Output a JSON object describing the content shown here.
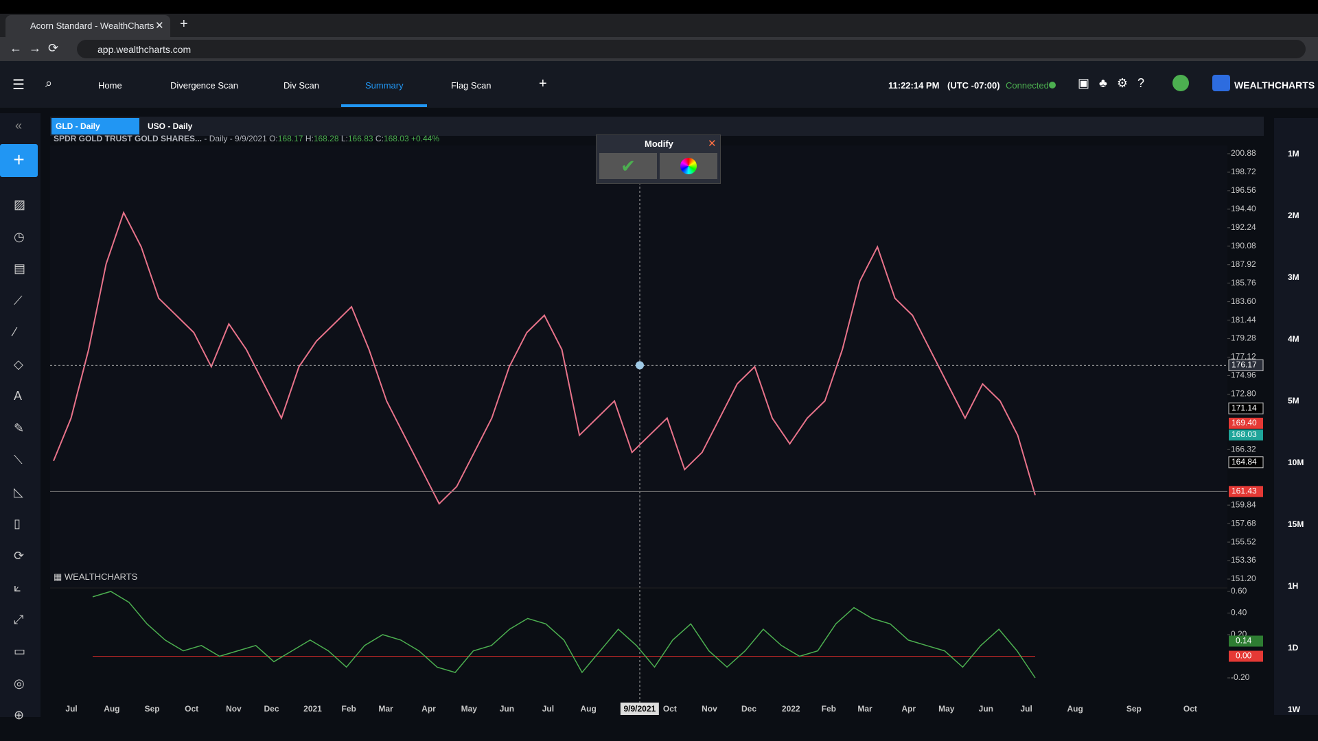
{
  "browser": {
    "tab_title": "Acorn Standard - WealthCharts",
    "url": "app.wealthcharts.com"
  },
  "nav": {
    "items": [
      "Home",
      "Divergence Scan",
      "Div Scan",
      "Summary",
      "Flag Scan"
    ],
    "time": "11:22:14 PM",
    "timezone": "(UTC -07:00)",
    "status": "Connected",
    "brand": "WEALTHCHARTS"
  },
  "chart_tabs": [
    "GLD - Daily",
    "USO - Daily"
  ],
  "legend": {
    "symbol": "SPDR GOLD TRUST GOLD SHARES...",
    "info": "- Daily - 9/9/2021",
    "open_label": "O:",
    "open": "168.17",
    "high_label": "H:",
    "high": "168.28",
    "low_label": "L:",
    "low": "166.83",
    "close_label": "C:",
    "close": "168.03",
    "change": "+0.44%"
  },
  "popup": {
    "title": "Modify"
  },
  "watermark": "WEALTHCHARTS",
  "price": {
    "yticks": [
      200.88,
      198.72,
      196.56,
      {
        "value": 194.4,
        "label": "194.40"
      },
      192.24,
      190.08,
      187.92,
      185.76,
      {
        "value": 183.6,
        "label": "183.60"
      },
      181.44,
      179.28,
      177.12,
      174.96,
      {
        "value": 172.8,
        "label": "172.80"
      },
      166.32,
      159.84,
      157.68,
      155.52,
      153.36,
      {
        "value": 151.2,
        "label": "151.20"
      }
    ],
    "tags": [
      {
        "value": 176.17,
        "color": "#2a2e39"
      },
      {
        "value": 171.14,
        "color": "#000000"
      },
      {
        "value": 169.4,
        "label": "169.40",
        "color": "#e53935"
      },
      {
        "value": 168.03,
        "color": "#1fa59a"
      },
      {
        "value": 164.84,
        "color": "#000000"
      },
      {
        "value": 161.43,
        "color": "#e53935"
      }
    ],
    "closes": [
      165,
      170,
      178,
      188,
      194,
      190,
      184,
      182,
      180,
      176,
      181,
      178,
      174,
      170,
      176,
      179,
      181,
      183,
      178,
      172,
      168,
      164,
      160,
      162,
      166,
      170,
      176,
      180,
      182,
      178,
      168,
      170,
      172,
      166,
      168,
      170,
      164,
      166,
      170,
      174,
      176,
      170,
      167,
      170,
      172,
      178,
      186,
      190,
      184,
      182,
      178,
      174,
      170,
      174,
      172,
      168,
      161
    ],
    "color": "#e8738a"
  },
  "oscillator": {
    "yticks": [
      {
        "value": 0.6,
        "label": "0.60"
      },
      {
        "value": 0.4,
        "label": "0.40"
      },
      {
        "value": 0.2,
        "label": "0.20"
      },
      {
        "value": -0.2,
        "label": "-0.20"
      }
    ],
    "tags": [
      {
        "value": 0.14,
        "color": "#2e7d32"
      },
      {
        "value": 0,
        "label": "0.00",
        "color": "#e53935"
      }
    ],
    "values": [
      0.55,
      0.6,
      0.5,
      0.3,
      0.15,
      0.05,
      0.1,
      0.0,
      0.05,
      0.1,
      -0.05,
      0.05,
      0.15,
      0.05,
      -0.1,
      0.1,
      0.2,
      0.15,
      0.05,
      -0.1,
      -0.15,
      0.05,
      0.1,
      0.25,
      0.35,
      0.3,
      0.15,
      -0.15,
      0.05,
      0.25,
      0.1,
      -0.1,
      0.15,
      0.3,
      0.05,
      -0.1,
      0.05,
      0.25,
      0.1,
      0.0,
      0.05,
      0.3,
      0.45,
      0.35,
      0.3,
      0.15,
      0.1,
      0.05,
      -0.1,
      0.1,
      0.25,
      0.05,
      -0.2
    ],
    "color": "#4caf50"
  },
  "time_axis": [
    "Jul",
    "Aug",
    "Sep",
    "Oct",
    "Nov",
    "Dec",
    "2021",
    "Feb",
    "Mar",
    "Apr",
    "May",
    "Jun",
    "Jul",
    "Aug",
    "9/9/2021",
    "Oct",
    "Nov",
    "Dec",
    "2022",
    "Feb",
    "Mar",
    "Apr",
    "May",
    "Jun",
    "Jul",
    "Aug",
    "Sep",
    "Oct"
  ],
  "timeframes": [
    "1M",
    "2M",
    "3M",
    "4M",
    "5M",
    "10M",
    "15M",
    "1H",
    "1D",
    "1W"
  ]
}
